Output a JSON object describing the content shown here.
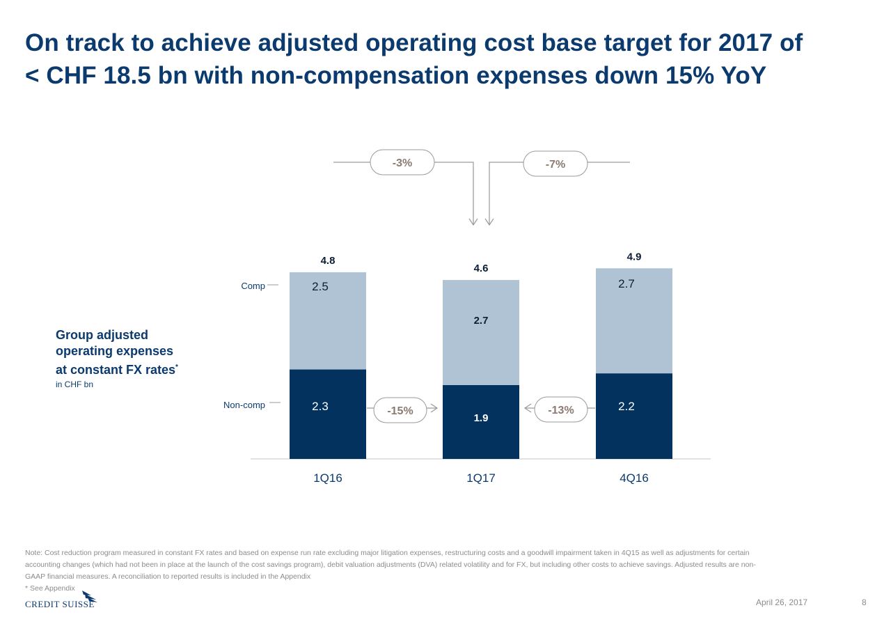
{
  "title": {
    "line1": "On track to achieve adjusted operating cost base target for 2017 of",
    "line2": "< CHF 18.5 bn with non-compensation expenses down 15% YoY"
  },
  "side_label": {
    "line1": "Group adjusted",
    "line2": "operating expenses",
    "line3": "at constant FX rates",
    "footnote_mark": "*",
    "unit": "in CHF bn"
  },
  "chart_data": {
    "type": "bar",
    "stacked": true,
    "categories": [
      "1Q16",
      "1Q17",
      "4Q16"
    ],
    "series": [
      {
        "name": "Non-comp",
        "values": [
          2.3,
          1.9,
          2.2
        ],
        "color": "#03325f"
      },
      {
        "name": "Comp",
        "values": [
          2.5,
          2.7,
          2.7
        ],
        "color": "#b0c3d4"
      }
    ],
    "totals": [
      4.8,
      4.6,
      4.9
    ],
    "ylim": [
      0,
      5.5
    ],
    "grid": false,
    "legend": "left, inline labels",
    "annotations": {
      "top_left": "-3%",
      "top_right": "-7%",
      "bottom_left": "-15%",
      "bottom_right": "-13%"
    },
    "colors": {
      "accent": "#0b3a6e",
      "callout_text": "#8c7a71",
      "callout_border": "#9a9a9a"
    }
  },
  "footer": {
    "note_line1": "Note: Cost reduction program measured in constant FX rates and based on expense run rate excluding major litigation expenses, restructuring costs and a goodwill impairment taken in 4Q15 as well as adjustments for certain",
    "note_line2": "accounting changes (which had not been in place at the launch of the cost savings program), debit valuation adjustments (DVA) related volatility and for FX, but including other costs to achieve savings. Adjusted results are non-",
    "note_line3": "GAAP financial measures. A reconciliation to reported results is included in the Appendix",
    "note_line4": "* See Appendix",
    "logo_text": "CREDIT SUISSE",
    "date": "April 26, 2017",
    "page": "8"
  }
}
